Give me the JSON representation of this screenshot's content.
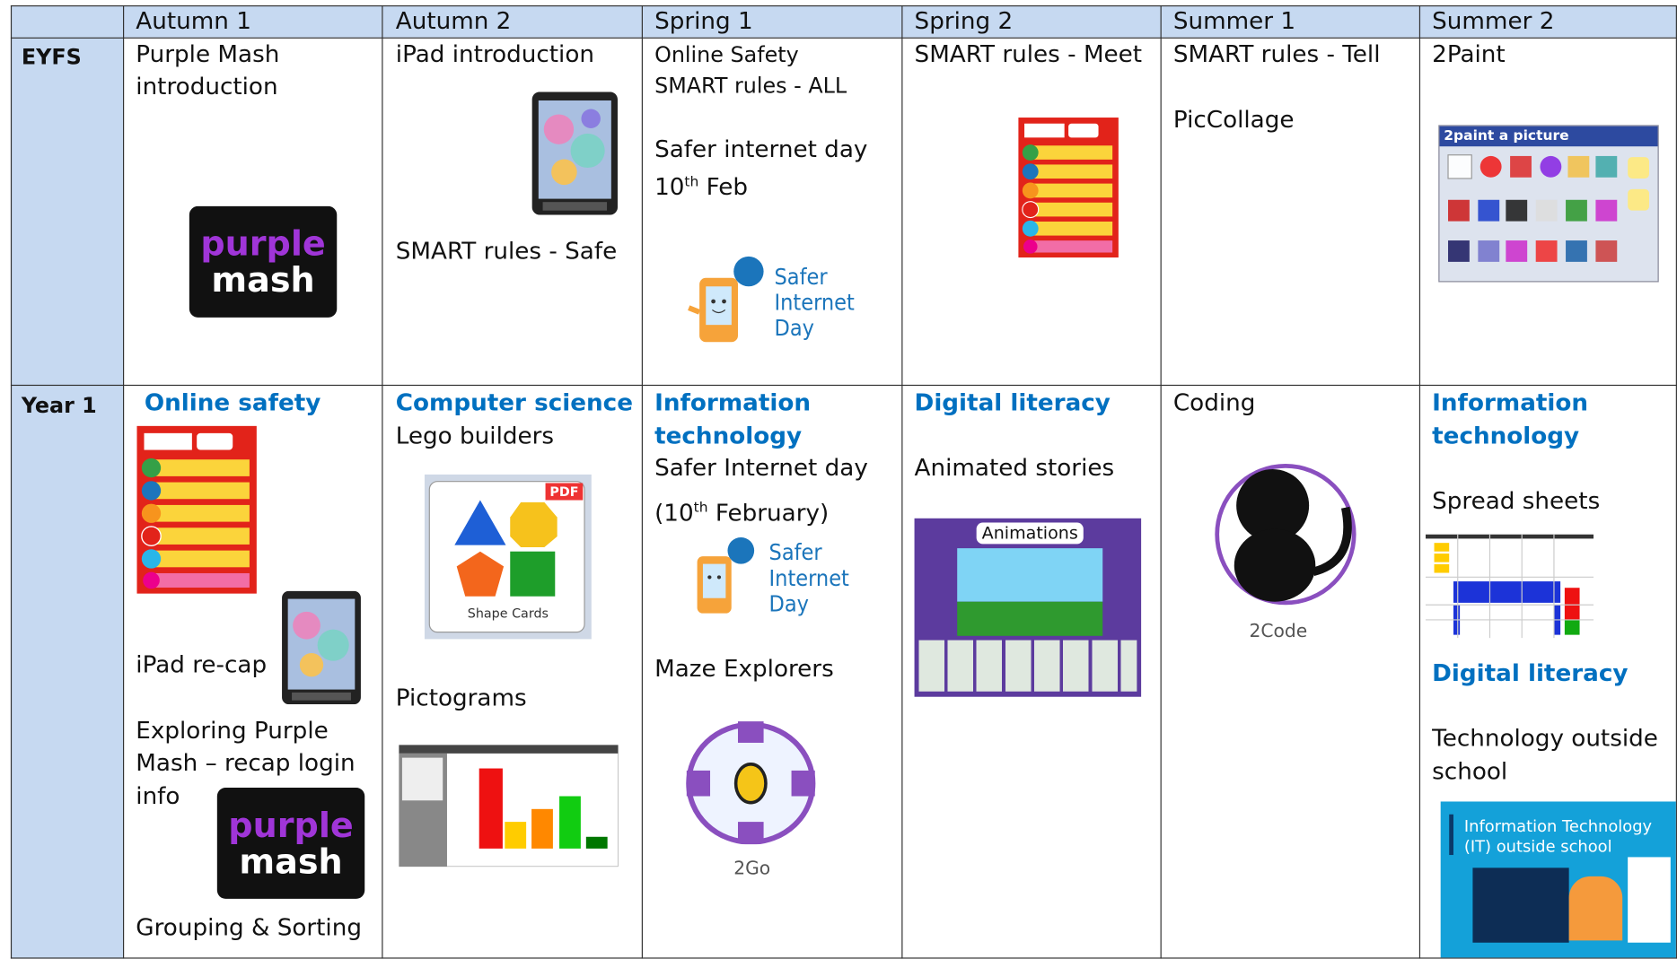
{
  "table": {
    "columns": [
      "Autumn 1",
      "Autumn 2",
      "Spring 1",
      "Spring 2",
      "Summer 1",
      "Summer 2"
    ],
    "rows": [
      {
        "label": "EYFS",
        "cells": [
          {
            "texts": [
              "Purple Mash",
              "introduction"
            ],
            "image_text": [
              "purple",
              "mash"
            ]
          },
          {
            "texts": [
              "iPad introduction",
              "SMART rules - Safe"
            ]
          },
          {
            "texts": [
              "Online Safety",
              "SMART rules - ALL",
              "Safer internet day",
              {
                "text": "10",
                "sup": "th",
                "after": " Feb"
              }
            ],
            "image_text": [
              "Safer",
              "Internet",
              "Day"
            ]
          },
          {
            "texts": [
              "SMART rules - Meet"
            ]
          },
          {
            "texts": [
              "SMART rules - Tell",
              "PicCollage"
            ]
          },
          {
            "texts": [
              "2Paint"
            ],
            "image_text": [
              "2paint a picture"
            ]
          }
        ]
      },
      {
        "label": "Year 1",
        "cells": [
          {
            "texts": [
              "Online safety",
              "iPad re-cap",
              "Exploring Purple",
              "Mash – recap login",
              "info",
              "Grouping & Sorting"
            ],
            "image_text": [
              "purple",
              "mash"
            ]
          },
          {
            "texts": [
              "Computer science",
              "Lego builders",
              "Pictograms"
            ],
            "image_text": [
              "PDF",
              "Shape Cards"
            ]
          },
          {
            "texts": [
              "Information",
              "technology",
              "Safer Internet day",
              {
                "text": "(10",
                "sup": "th",
                "after": " February)"
              },
              "Maze Explorers"
            ],
            "image_text": [
              "Safer",
              "Internet",
              "Day",
              "2Go"
            ]
          },
          {
            "texts": [
              "Digital literacy",
              "Animated stories"
            ],
            "image_text": [
              "Animations"
            ]
          },
          {
            "texts": [
              "Coding"
            ],
            "image_text": [
              "2Code"
            ]
          },
          {
            "texts": [
              "Information",
              "technology",
              "Spread sheets",
              "Digital literacy",
              "Technology outside",
              "school"
            ],
            "image_text": [
              "Information Technology",
              "(IT) outside school"
            ]
          }
        ]
      }
    ]
  }
}
